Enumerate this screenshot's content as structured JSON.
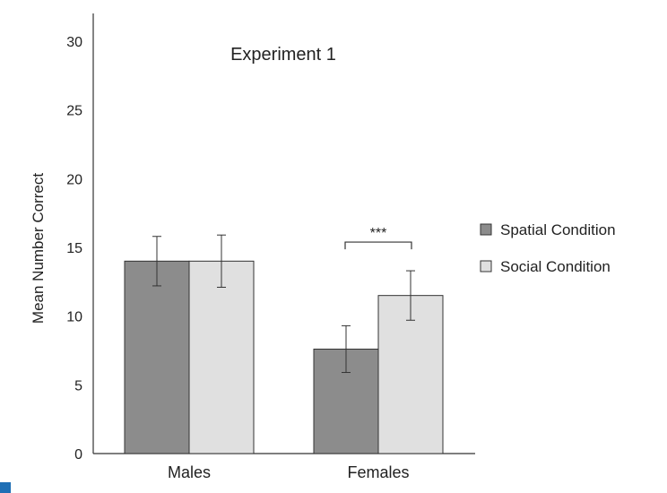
{
  "chart_data": {
    "type": "bar",
    "title": "Experiment 1",
    "xlabel": "",
    "ylabel": "Mean Number Correct",
    "ylim": [
      0,
      30
    ],
    "yticks": [
      0,
      5,
      10,
      15,
      20,
      25,
      30
    ],
    "categories": [
      "Males",
      "Females"
    ],
    "series": [
      {
        "name": "Spatial Condition",
        "color": "#8c8c8c",
        "values": [
          14.0,
          7.6
        ],
        "error": [
          1.8,
          1.7
        ]
      },
      {
        "name": "Social Condition",
        "color": "#e0e0e0",
        "values": [
          14.0,
          11.5
        ],
        "error": [
          1.9,
          1.8
        ]
      }
    ],
    "annotations": [
      {
        "text": "***",
        "category": "Females",
        "between": [
          "Spatial Condition",
          "Social Condition"
        ]
      }
    ],
    "grid": false,
    "legend_position": "right"
  }
}
